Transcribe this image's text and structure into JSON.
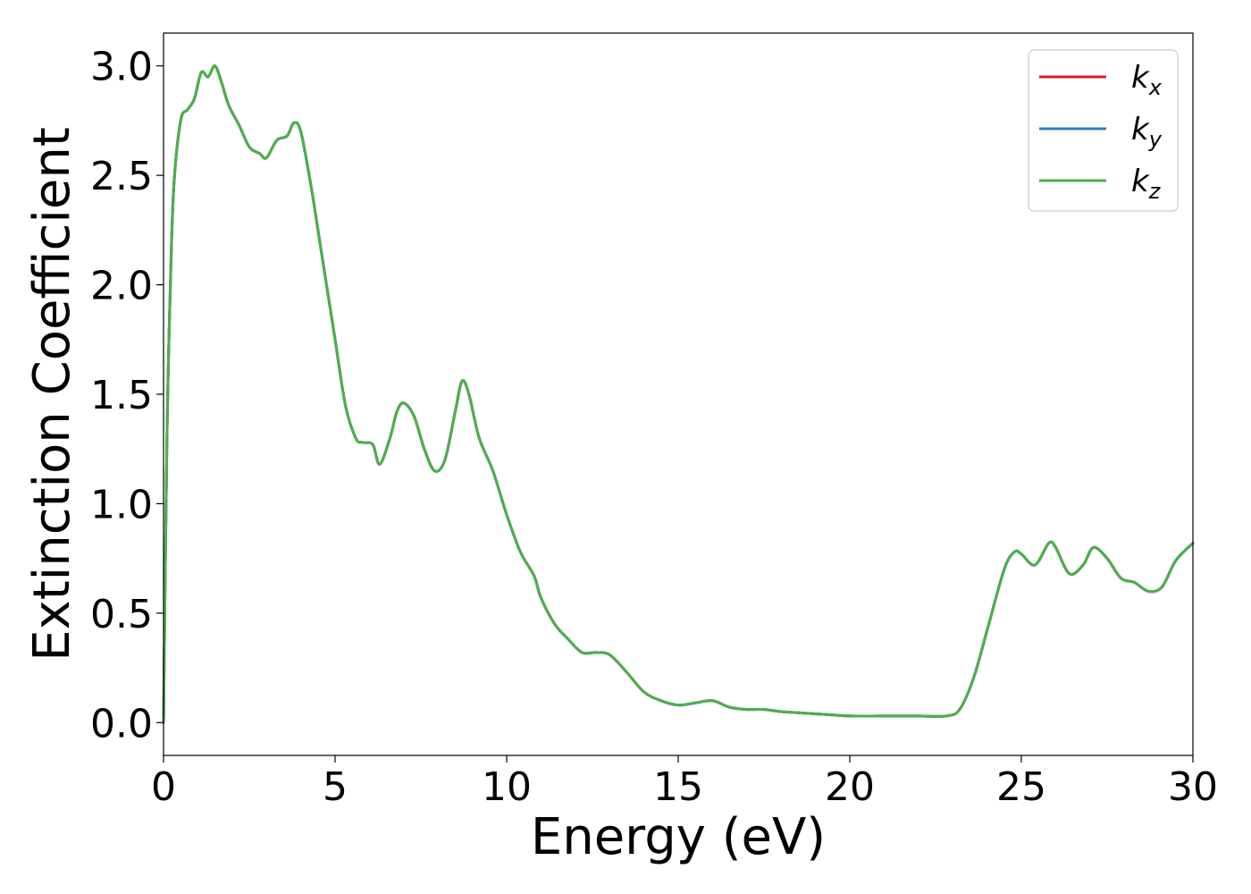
{
  "chart_data": {
    "type": "line",
    "xlabel": "Energy (eV)",
    "ylabel": "Extinction Coefficient",
    "xlim": [
      0,
      30
    ],
    "ylim": [
      -0.15,
      3.15
    ],
    "xticks": [
      0,
      5,
      10,
      15,
      20,
      25,
      30
    ],
    "xtick_labels": [
      "0",
      "5",
      "10",
      "15",
      "20",
      "25",
      "30"
    ],
    "yticks": [
      0.0,
      0.5,
      1.0,
      1.5,
      2.0,
      2.5,
      3.0
    ],
    "ytick_labels": [
      "0.0",
      "0.5",
      "1.0",
      "1.5",
      "2.0",
      "2.5",
      "3.0"
    ],
    "grid": false,
    "legend_position": "top-right",
    "x": [
      0.0,
      0.1,
      0.2,
      0.3,
      0.5,
      0.7,
      0.9,
      1.1,
      1.3,
      1.5,
      1.7,
      1.9,
      2.2,
      2.5,
      2.8,
      3.0,
      3.3,
      3.6,
      3.8,
      4.0,
      4.3,
      4.6,
      5.0,
      5.3,
      5.6,
      5.8,
      6.1,
      6.3,
      6.6,
      6.8,
      7.0,
      7.3,
      7.6,
      7.9,
      8.2,
      8.5,
      8.7,
      8.9,
      9.2,
      9.6,
      10.0,
      10.4,
      10.8,
      11.0,
      11.4,
      11.8,
      12.2,
      12.6,
      13.0,
      13.5,
      14.0,
      14.5,
      15.0,
      15.5,
      16.0,
      16.5,
      17.0,
      17.5,
      18.0,
      18.5,
      19.0,
      19.5,
      20.0,
      21.0,
      22.0,
      22.8,
      23.2,
      23.6,
      24.0,
      24.5,
      24.8,
      25.0,
      25.4,
      25.8,
      26.0,
      26.4,
      26.8,
      27.1,
      27.5,
      27.9,
      28.3,
      28.7,
      29.1,
      29.5,
      30.0
    ],
    "series": [
      {
        "name": "k_x",
        "label_base": "k",
        "label_sub": "x",
        "color": "#e41a1c",
        "values": [
          0.0,
          1.3,
          2.0,
          2.45,
          2.75,
          2.8,
          2.85,
          2.97,
          2.95,
          3.0,
          2.92,
          2.82,
          2.73,
          2.63,
          2.6,
          2.58,
          2.66,
          2.68,
          2.74,
          2.7,
          2.45,
          2.15,
          1.75,
          1.45,
          1.3,
          1.28,
          1.27,
          1.18,
          1.3,
          1.42,
          1.46,
          1.4,
          1.25,
          1.15,
          1.2,
          1.42,
          1.56,
          1.5,
          1.3,
          1.15,
          0.95,
          0.78,
          0.67,
          0.57,
          0.45,
          0.38,
          0.32,
          0.32,
          0.31,
          0.23,
          0.14,
          0.1,
          0.08,
          0.09,
          0.1,
          0.07,
          0.06,
          0.06,
          0.05,
          0.045,
          0.04,
          0.035,
          0.03,
          0.03,
          0.03,
          0.03,
          0.06,
          0.2,
          0.42,
          0.7,
          0.78,
          0.77,
          0.72,
          0.82,
          0.8,
          0.68,
          0.72,
          0.8,
          0.75,
          0.66,
          0.64,
          0.6,
          0.62,
          0.74,
          0.82
        ]
      },
      {
        "name": "k_y",
        "label_base": "k",
        "label_sub": "y",
        "color": "#377eb8",
        "values": [
          0.0,
          1.3,
          2.0,
          2.45,
          2.75,
          2.8,
          2.85,
          2.97,
          2.95,
          3.0,
          2.92,
          2.82,
          2.73,
          2.63,
          2.6,
          2.58,
          2.66,
          2.68,
          2.74,
          2.7,
          2.45,
          2.15,
          1.75,
          1.45,
          1.3,
          1.28,
          1.27,
          1.18,
          1.3,
          1.42,
          1.46,
          1.4,
          1.25,
          1.15,
          1.2,
          1.42,
          1.56,
          1.5,
          1.3,
          1.15,
          0.95,
          0.78,
          0.67,
          0.57,
          0.45,
          0.38,
          0.32,
          0.32,
          0.31,
          0.23,
          0.14,
          0.1,
          0.08,
          0.09,
          0.1,
          0.07,
          0.06,
          0.06,
          0.05,
          0.045,
          0.04,
          0.035,
          0.03,
          0.03,
          0.03,
          0.03,
          0.06,
          0.2,
          0.42,
          0.7,
          0.78,
          0.77,
          0.72,
          0.82,
          0.8,
          0.68,
          0.72,
          0.8,
          0.75,
          0.66,
          0.64,
          0.6,
          0.62,
          0.74,
          0.82
        ]
      },
      {
        "name": "k_z",
        "label_base": "k",
        "label_sub": "z",
        "color": "#4daf4a",
        "values": [
          0.0,
          1.3,
          2.0,
          2.45,
          2.75,
          2.8,
          2.85,
          2.97,
          2.95,
          3.0,
          2.92,
          2.82,
          2.73,
          2.63,
          2.6,
          2.58,
          2.66,
          2.68,
          2.74,
          2.7,
          2.45,
          2.15,
          1.75,
          1.45,
          1.3,
          1.28,
          1.27,
          1.18,
          1.3,
          1.42,
          1.46,
          1.4,
          1.25,
          1.15,
          1.2,
          1.42,
          1.56,
          1.5,
          1.3,
          1.15,
          0.95,
          0.78,
          0.67,
          0.57,
          0.45,
          0.38,
          0.32,
          0.32,
          0.31,
          0.23,
          0.14,
          0.1,
          0.08,
          0.09,
          0.1,
          0.07,
          0.06,
          0.06,
          0.05,
          0.045,
          0.04,
          0.035,
          0.03,
          0.03,
          0.03,
          0.03,
          0.06,
          0.2,
          0.42,
          0.7,
          0.78,
          0.77,
          0.72,
          0.82,
          0.8,
          0.68,
          0.72,
          0.8,
          0.75,
          0.66,
          0.64,
          0.6,
          0.62,
          0.74,
          0.82
        ]
      }
    ]
  }
}
